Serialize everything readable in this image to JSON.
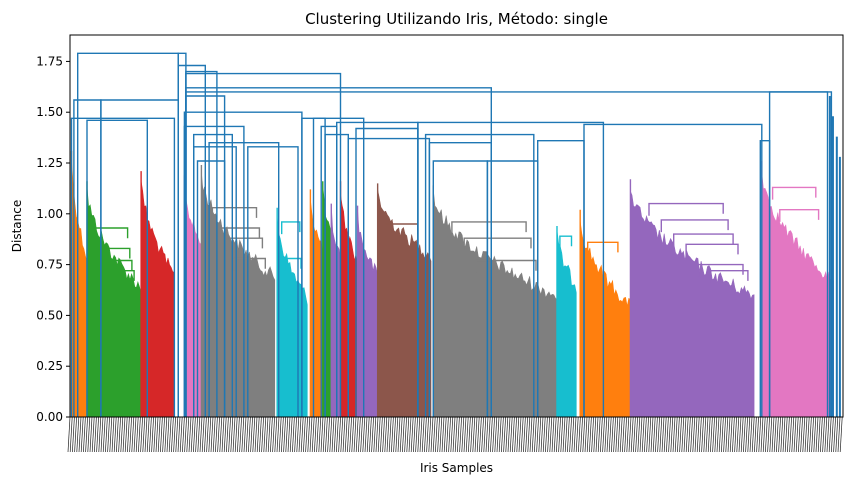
{
  "chart_data": {
    "type": "dendrogram",
    "title": "Clustering Utilizando Iris, Método: single",
    "xlabel": "Iris Samples",
    "ylabel": "Distance",
    "ylim": [
      0,
      1.88
    ],
    "y_ticks": [
      "0.00",
      "0.25",
      "0.50",
      "0.75",
      "1.00",
      "1.25",
      "1.50",
      "1.75"
    ],
    "x_leaf_count": 1200,
    "grid": false,
    "link_color": "#1f77b4",
    "clusters": [
      {
        "color": "#ff7f0e",
        "start": 0.002,
        "end": 0.022,
        "top": 1.31,
        "base": 0.82
      },
      {
        "color": "#2ca02c",
        "start": 0.022,
        "end": 0.092,
        "top": 1.16,
        "base": 0.67,
        "bridges": [
          0.93,
          0.83,
          0.77,
          0.72
        ]
      },
      {
        "color": "#d62728",
        "start": 0.092,
        "end": 0.135,
        "top": 1.21,
        "base": 0.73
      },
      {
        "color": "#e377c2",
        "start": 0.148,
        "end": 0.17,
        "top": 1.19,
        "base": 0.88
      },
      {
        "color": "#7f7f7f",
        "start": 0.17,
        "end": 0.265,
        "top": 1.24,
        "base": 0.72,
        "bridges": [
          1.03,
          0.93,
          0.88,
          0.78
        ]
      },
      {
        "color": "#17becf",
        "start": 0.268,
        "end": 0.307,
        "top": 1.03,
        "base": 0.62,
        "bridges": [
          0.96,
          0.78
        ]
      },
      {
        "color": "#ff7f0e",
        "start": 0.311,
        "end": 0.327,
        "top": 1.12,
        "base": 0.86
      },
      {
        "color": "#2ca02c",
        "start": 0.327,
        "end": 0.338,
        "top": 1.16,
        "base": 0.92
      },
      {
        "color": "#9467bd",
        "start": 0.338,
        "end": 0.35,
        "top": 1.05,
        "base": 0.82
      },
      {
        "color": "#d62728",
        "start": 0.35,
        "end": 0.372,
        "top": 1.16,
        "base": 0.8
      },
      {
        "color": "#9467bd",
        "start": 0.372,
        "end": 0.398,
        "top": 1.04,
        "base": 0.73
      },
      {
        "color": "#8c564b",
        "start": 0.398,
        "end": 0.467,
        "top": 1.15,
        "base": 0.83,
        "bridges": [
          0.95
        ]
      },
      {
        "color": "#7f7f7f",
        "start": 0.47,
        "end": 0.63,
        "top": 1.14,
        "base": 0.63,
        "bridges": [
          0.96,
          0.88,
          0.77
        ]
      },
      {
        "color": "#17becf",
        "start": 0.63,
        "end": 0.655,
        "top": 0.94,
        "base": 0.68,
        "bridges": [
          0.89
        ]
      },
      {
        "color": "#ff7f0e",
        "start": 0.66,
        "end": 0.725,
        "top": 1.02,
        "base": 0.58,
        "bridges": [
          0.86
        ]
      },
      {
        "color": "#9467bd",
        "start": 0.725,
        "end": 0.885,
        "top": 1.17,
        "base": 0.63,
        "bridges": [
          1.05,
          0.97,
          0.9,
          0.85,
          0.75,
          0.72
        ]
      },
      {
        "color": "#e377c2",
        "start": 0.895,
        "end": 0.988,
        "top": 1.26,
        "base": 0.7,
        "bridges": [
          1.13,
          1.02
        ]
      }
    ],
    "top_links": [
      {
        "xl": 0.002,
        "xr": 0.135,
        "y": 1.47
      },
      {
        "xl": 0.005,
        "xr": 0.04,
        "y": 1.56
      },
      {
        "xl": 0.022,
        "xr": 0.1,
        "y": 1.46
      },
      {
        "xl": 0.04,
        "xr": 0.14,
        "y": 1.56
      },
      {
        "xl": 0.01,
        "xr": 0.14,
        "y": 1.79
      },
      {
        "xl": 0.14,
        "xr": 0.15,
        "y": 1.79
      },
      {
        "xl": 0.14,
        "xr": 0.175,
        "y": 1.73
      },
      {
        "xl": 0.15,
        "xr": 0.19,
        "y": 1.7
      },
      {
        "xl": 0.15,
        "xr": 0.35,
        "y": 1.69
      },
      {
        "xl": 0.15,
        "xr": 0.545,
        "y": 1.62
      },
      {
        "xl": 0.15,
        "xr": 0.98,
        "y": 1.6
      },
      {
        "xl": 0.15,
        "xr": 0.2,
        "y": 1.58
      },
      {
        "xl": 0.148,
        "xr": 0.3,
        "y": 1.5
      },
      {
        "xl": 0.148,
        "xr": 0.225,
        "y": 1.43
      },
      {
        "xl": 0.16,
        "xr": 0.21,
        "y": 1.39
      },
      {
        "xl": 0.16,
        "xr": 0.215,
        "y": 1.33
      },
      {
        "xl": 0.165,
        "xr": 0.2,
        "y": 1.26
      },
      {
        "xl": 0.18,
        "xr": 0.27,
        "y": 1.35
      },
      {
        "xl": 0.23,
        "xr": 0.295,
        "y": 1.33
      },
      {
        "xl": 0.3,
        "xr": 0.33,
        "y": 1.47
      },
      {
        "xl": 0.315,
        "xr": 0.38,
        "y": 1.47
      },
      {
        "xl": 0.33,
        "xr": 0.36,
        "y": 1.39
      },
      {
        "xl": 0.325,
        "xr": 0.345,
        "y": 1.43
      },
      {
        "xl": 0.345,
        "xr": 0.45,
        "y": 1.45
      },
      {
        "xl": 0.36,
        "xr": 0.465,
        "y": 1.37
      },
      {
        "xl": 0.37,
        "xr": 0.45,
        "y": 1.42
      },
      {
        "xl": 0.45,
        "xr": 0.69,
        "y": 1.45
      },
      {
        "xl": 0.46,
        "xr": 0.6,
        "y": 1.39
      },
      {
        "xl": 0.465,
        "xr": 0.545,
        "y": 1.35
      },
      {
        "xl": 0.47,
        "xr": 0.54,
        "y": 1.26
      },
      {
        "xl": 0.54,
        "xr": 0.605,
        "y": 1.26
      },
      {
        "xl": 0.605,
        "xr": 0.665,
        "y": 1.36
      },
      {
        "xl": 0.665,
        "xr": 0.895,
        "y": 1.44
      },
      {
        "xl": 0.893,
        "xr": 0.905,
        "y": 1.36
      },
      {
        "xl": 0.905,
        "xr": 0.985,
        "y": 1.6
      }
    ]
  }
}
